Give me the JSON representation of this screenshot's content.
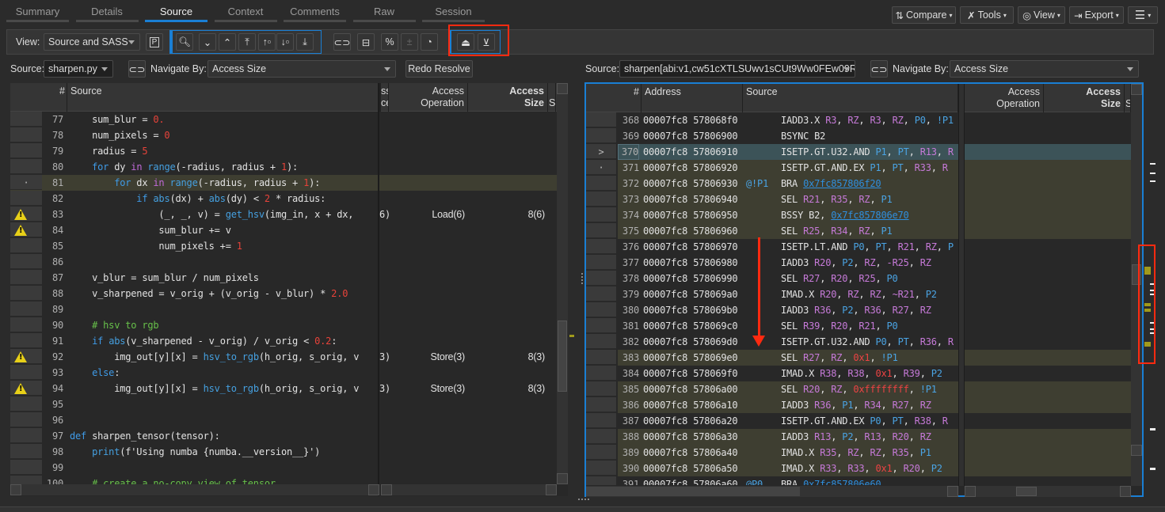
{
  "tabs": [
    {
      "label": "Summary"
    },
    {
      "label": "Details"
    },
    {
      "label": "Source",
      "active": true
    },
    {
      "label": "Context"
    },
    {
      "label": "Comments"
    },
    {
      "label": "Raw"
    },
    {
      "label": "Session"
    }
  ],
  "top_buttons": {
    "compare": "Compare",
    "tools": "Tools",
    "view": "View",
    "export": "Export"
  },
  "toolbar": {
    "view_label": "View:",
    "view_value": "Source and SASS"
  },
  "left": {
    "source_label": "Source:",
    "source_value": "sharpen.py",
    "navigate_label": "Navigate By:",
    "navigate_value": "Access Size",
    "redo": "Redo Resolve",
    "headers": {
      "num": "#",
      "source": "Source",
      "partial1": "ss",
      "partial2": "ce",
      "op1": "Access",
      "op2": "Operation",
      "size1": "Access",
      "size2": "Size",
      "s": "S"
    },
    "rows": [
      {
        "n": 77,
        "code": "    sum_blur = 0."
      },
      {
        "n": 78,
        "code": "    num_pixels = 0"
      },
      {
        "n": 79,
        "code": "    radius = 5"
      },
      {
        "n": 80,
        "code": "    for dy in range(-radius, radius + 1):"
      },
      {
        "n": 81,
        "code": "        for dx in range(-radius, radius + 1):",
        "hl": true,
        "mark": "·"
      },
      {
        "n": 82,
        "code": "            if abs(dx) + abs(dy) < 2 * radius:"
      },
      {
        "n": 83,
        "code": "                (_, _, v) = get_hsv(img_in, x + dx, ",
        "warn": true,
        "partial": "6)",
        "op": "Load(6)",
        "size": "8(6)"
      },
      {
        "n": 84,
        "code": "                sum_blur += v",
        "warn": true
      },
      {
        "n": 85,
        "code": "                num_pixels += 1"
      },
      {
        "n": 86,
        "code": ""
      },
      {
        "n": 87,
        "code": "    v_blur = sum_blur / num_pixels"
      },
      {
        "n": 88,
        "code": "    v_sharpened = v_orig + (v_orig - v_blur) * 2.0"
      },
      {
        "n": 89,
        "code": ""
      },
      {
        "n": 90,
        "code": "    # hsv to rgb"
      },
      {
        "n": 91,
        "code": "    if abs(v_sharpened - v_orig) / v_orig < 0.2:"
      },
      {
        "n": 92,
        "code": "        img_out[y][x] = hsv_to_rgb(h_orig, s_orig, v",
        "warn": true,
        "partial": "3)",
        "op": "Store(3)",
        "size": "8(3)"
      },
      {
        "n": 93,
        "code": "    else:"
      },
      {
        "n": 94,
        "code": "        img_out[y][x] = hsv_to_rgb(h_orig, s_orig, v",
        "warn": true,
        "partial": "3)",
        "op": "Store(3)",
        "size": "8(3)"
      },
      {
        "n": 95,
        "code": ""
      },
      {
        "n": 96,
        "code": ""
      },
      {
        "n": 97,
        "code": "def sharpen_tensor(tensor):"
      },
      {
        "n": 98,
        "code": "    print(f'Using numba {numba.__version__}')"
      },
      {
        "n": 99,
        "code": ""
      },
      {
        "n": 100,
        "code": "    # create a no-copy view of tensor"
      }
    ]
  },
  "right": {
    "source_label": "Source:",
    "source_value": "sharpen[abi:v1,cw51cXTLSUwv1sCUt9Ww0FEw09R",
    "navigate_label": "Navigate By:",
    "navigate_value": "Access Size",
    "headers": {
      "num": "#",
      "address": "Address",
      "source": "Source",
      "op1": "Access",
      "op2": "Operation",
      "size1": "Access",
      "size2": "Size",
      "s": "S"
    },
    "rows": [
      {
        "n": 368,
        "addr": "00007fc8 578068f0",
        "pred": "",
        "op": "IADD3.X",
        "args": "R3, RZ, R3, RZ, P0, !P1"
      },
      {
        "n": 369,
        "addr": "00007fc8 57806900",
        "pred": "",
        "op": "BSYNC",
        "args": "B2"
      },
      {
        "n": 370,
        "addr": "00007fc8 57806910",
        "pred": "",
        "op": "ISETP.GT.U32.AND",
        "args": "P1, PT, R13, R",
        "sel": true,
        "mark": ">"
      },
      {
        "n": 371,
        "addr": "00007fc8 57806920",
        "pred": "",
        "op": "ISETP.GT.AND.EX",
        "args": "P1, PT, R33, R",
        "hl": true,
        "mark": "·"
      },
      {
        "n": 372,
        "addr": "00007fc8 57806930",
        "pred": "@!P1",
        "op": "BRA",
        "args": "0x7fc857806f20",
        "link": true,
        "hl": true
      },
      {
        "n": 373,
        "addr": "00007fc8 57806940",
        "pred": "",
        "op": "SEL",
        "args": "R21, R35, RZ, P1",
        "hl": true
      },
      {
        "n": 374,
        "addr": "00007fc8 57806950",
        "pred": "",
        "op": "BSSY",
        "args": "B2, 0x7fc857806e70",
        "link": true,
        "hl": true
      },
      {
        "n": 375,
        "addr": "00007fc8 57806960",
        "pred": "",
        "op": "SEL",
        "args": "R25, R34, RZ, P1",
        "hl": true
      },
      {
        "n": 376,
        "addr": "00007fc8 57806970",
        "pred": "",
        "op": "ISETP.LT.AND",
        "args": "P0, PT, R21, RZ, P"
      },
      {
        "n": 377,
        "addr": "00007fc8 57806980",
        "pred": "",
        "op": "IADD3",
        "args": "R20, P2, RZ, -R25, RZ"
      },
      {
        "n": 378,
        "addr": "00007fc8 57806990",
        "pred": "",
        "op": "SEL",
        "args": "R27, R20, R25, P0"
      },
      {
        "n": 379,
        "addr": "00007fc8 578069a0",
        "pred": "",
        "op": "IMAD.X",
        "args": "R20, RZ, RZ, ~R21, P2"
      },
      {
        "n": 380,
        "addr": "00007fc8 578069b0",
        "pred": "",
        "op": "IADD3",
        "args": "R36, P2, R36, R27, RZ"
      },
      {
        "n": 381,
        "addr": "00007fc8 578069c0",
        "pred": "",
        "op": "SEL",
        "args": "R39, R20, R21, P0"
      },
      {
        "n": 382,
        "addr": "00007fc8 578069d0",
        "pred": "",
        "op": "ISETP.GT.U32.AND",
        "args": "P0, PT, R36, R"
      },
      {
        "n": 383,
        "addr": "00007fc8 578069e0",
        "pred": "",
        "op": "SEL",
        "args": "R27, RZ, 0x1, !P1",
        "hl": true
      },
      {
        "n": 384,
        "addr": "00007fc8 578069f0",
        "pred": "",
        "op": "IMAD.X",
        "args": "R38, R38, 0x1, R39, P2"
      },
      {
        "n": 385,
        "addr": "00007fc8 57806a00",
        "pred": "",
        "op": "SEL",
        "args": "R20, RZ, 0xffffffff, !P1",
        "hl": true
      },
      {
        "n": 386,
        "addr": "00007fc8 57806a10",
        "pred": "",
        "op": "IADD3",
        "args": "R36, P1, R34, R27, RZ",
        "hl": true
      },
      {
        "n": 387,
        "addr": "00007fc8 57806a20",
        "pred": "",
        "op": "ISETP.GT.AND.EX",
        "args": "P0, PT, R38, R"
      },
      {
        "n": 388,
        "addr": "00007fc8 57806a30",
        "pred": "",
        "op": "IADD3",
        "args": "R13, P2, R13, R20, RZ",
        "hl": true
      },
      {
        "n": 389,
        "addr": "00007fc8 57806a40",
        "pred": "",
        "op": "IMAD.X",
        "args": "R35, RZ, RZ, R35, P1",
        "hl": true
      },
      {
        "n": 390,
        "addr": "00007fc8 57806a50",
        "pred": "",
        "op": "IMAD.X",
        "args": "R33, R33, 0x1, R20, P2",
        "hl": true
      },
      {
        "n": 391,
        "addr": "00007fc8 57806a60",
        "pred": "@P0",
        "op": "BRA",
        "args": "0x7fc857806e60",
        "link": true
      }
    ]
  },
  "colors": {
    "accent": "#1a7fd4",
    "highlight_row": "#3e3e31",
    "selected_row": "#3c5358",
    "annotation": "#ff2a10",
    "warning": "#e8d018"
  }
}
